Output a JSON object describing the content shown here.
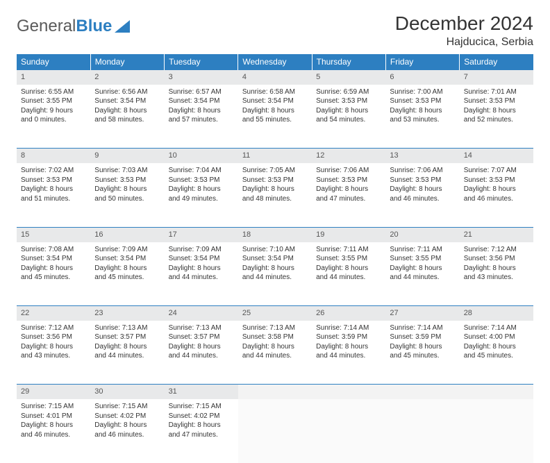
{
  "brand": {
    "part1": "General",
    "part2": "Blue"
  },
  "title": "December 2024",
  "location": "Hajducica, Serbia",
  "colors": {
    "header_bg": "#2d7fc1",
    "header_text": "#ffffff",
    "daynum_bg": "#e8e9ea",
    "border": "#2d7fc1",
    "text": "#333333"
  },
  "layout": {
    "columns": 7,
    "rows": 5,
    "start_day_index": 0
  },
  "weekdays": [
    "Sunday",
    "Monday",
    "Tuesday",
    "Wednesday",
    "Thursday",
    "Friday",
    "Saturday"
  ],
  "days": [
    {
      "n": "1",
      "sunrise": "6:55 AM",
      "sunset": "3:55 PM",
      "dl_h": "9",
      "dl_m": "0"
    },
    {
      "n": "2",
      "sunrise": "6:56 AM",
      "sunset": "3:54 PM",
      "dl_h": "8",
      "dl_m": "58"
    },
    {
      "n": "3",
      "sunrise": "6:57 AM",
      "sunset": "3:54 PM",
      "dl_h": "8",
      "dl_m": "57"
    },
    {
      "n": "4",
      "sunrise": "6:58 AM",
      "sunset": "3:54 PM",
      "dl_h": "8",
      "dl_m": "55"
    },
    {
      "n": "5",
      "sunrise": "6:59 AM",
      "sunset": "3:53 PM",
      "dl_h": "8",
      "dl_m": "54"
    },
    {
      "n": "6",
      "sunrise": "7:00 AM",
      "sunset": "3:53 PM",
      "dl_h": "8",
      "dl_m": "53"
    },
    {
      "n": "7",
      "sunrise": "7:01 AM",
      "sunset": "3:53 PM",
      "dl_h": "8",
      "dl_m": "52"
    },
    {
      "n": "8",
      "sunrise": "7:02 AM",
      "sunset": "3:53 PM",
      "dl_h": "8",
      "dl_m": "51"
    },
    {
      "n": "9",
      "sunrise": "7:03 AM",
      "sunset": "3:53 PM",
      "dl_h": "8",
      "dl_m": "50"
    },
    {
      "n": "10",
      "sunrise": "7:04 AM",
      "sunset": "3:53 PM",
      "dl_h": "8",
      "dl_m": "49"
    },
    {
      "n": "11",
      "sunrise": "7:05 AM",
      "sunset": "3:53 PM",
      "dl_h": "8",
      "dl_m": "48"
    },
    {
      "n": "12",
      "sunrise": "7:06 AM",
      "sunset": "3:53 PM",
      "dl_h": "8",
      "dl_m": "47"
    },
    {
      "n": "13",
      "sunrise": "7:06 AM",
      "sunset": "3:53 PM",
      "dl_h": "8",
      "dl_m": "46"
    },
    {
      "n": "14",
      "sunrise": "7:07 AM",
      "sunset": "3:53 PM",
      "dl_h": "8",
      "dl_m": "46"
    },
    {
      "n": "15",
      "sunrise": "7:08 AM",
      "sunset": "3:54 PM",
      "dl_h": "8",
      "dl_m": "45"
    },
    {
      "n": "16",
      "sunrise": "7:09 AM",
      "sunset": "3:54 PM",
      "dl_h": "8",
      "dl_m": "45"
    },
    {
      "n": "17",
      "sunrise": "7:09 AM",
      "sunset": "3:54 PM",
      "dl_h": "8",
      "dl_m": "44"
    },
    {
      "n": "18",
      "sunrise": "7:10 AM",
      "sunset": "3:54 PM",
      "dl_h": "8",
      "dl_m": "44"
    },
    {
      "n": "19",
      "sunrise": "7:11 AM",
      "sunset": "3:55 PM",
      "dl_h": "8",
      "dl_m": "44"
    },
    {
      "n": "20",
      "sunrise": "7:11 AM",
      "sunset": "3:55 PM",
      "dl_h": "8",
      "dl_m": "44"
    },
    {
      "n": "21",
      "sunrise": "7:12 AM",
      "sunset": "3:56 PM",
      "dl_h": "8",
      "dl_m": "43"
    },
    {
      "n": "22",
      "sunrise": "7:12 AM",
      "sunset": "3:56 PM",
      "dl_h": "8",
      "dl_m": "43"
    },
    {
      "n": "23",
      "sunrise": "7:13 AM",
      "sunset": "3:57 PM",
      "dl_h": "8",
      "dl_m": "44"
    },
    {
      "n": "24",
      "sunrise": "7:13 AM",
      "sunset": "3:57 PM",
      "dl_h": "8",
      "dl_m": "44"
    },
    {
      "n": "25",
      "sunrise": "7:13 AM",
      "sunset": "3:58 PM",
      "dl_h": "8",
      "dl_m": "44"
    },
    {
      "n": "26",
      "sunrise": "7:14 AM",
      "sunset": "3:59 PM",
      "dl_h": "8",
      "dl_m": "44"
    },
    {
      "n": "27",
      "sunrise": "7:14 AM",
      "sunset": "3:59 PM",
      "dl_h": "8",
      "dl_m": "45"
    },
    {
      "n": "28",
      "sunrise": "7:14 AM",
      "sunset": "4:00 PM",
      "dl_h": "8",
      "dl_m": "45"
    },
    {
      "n": "29",
      "sunrise": "7:15 AM",
      "sunset": "4:01 PM",
      "dl_h": "8",
      "dl_m": "46"
    },
    {
      "n": "30",
      "sunrise": "7:15 AM",
      "sunset": "4:02 PM",
      "dl_h": "8",
      "dl_m": "46"
    },
    {
      "n": "31",
      "sunrise": "7:15 AM",
      "sunset": "4:02 PM",
      "dl_h": "8",
      "dl_m": "47"
    }
  ],
  "labels": {
    "sunrise": "Sunrise:",
    "sunset": "Sunset:",
    "daylight_prefix": "Daylight:",
    "hours_word": "hours",
    "and_word": "and",
    "minutes_word": "minutes."
  }
}
